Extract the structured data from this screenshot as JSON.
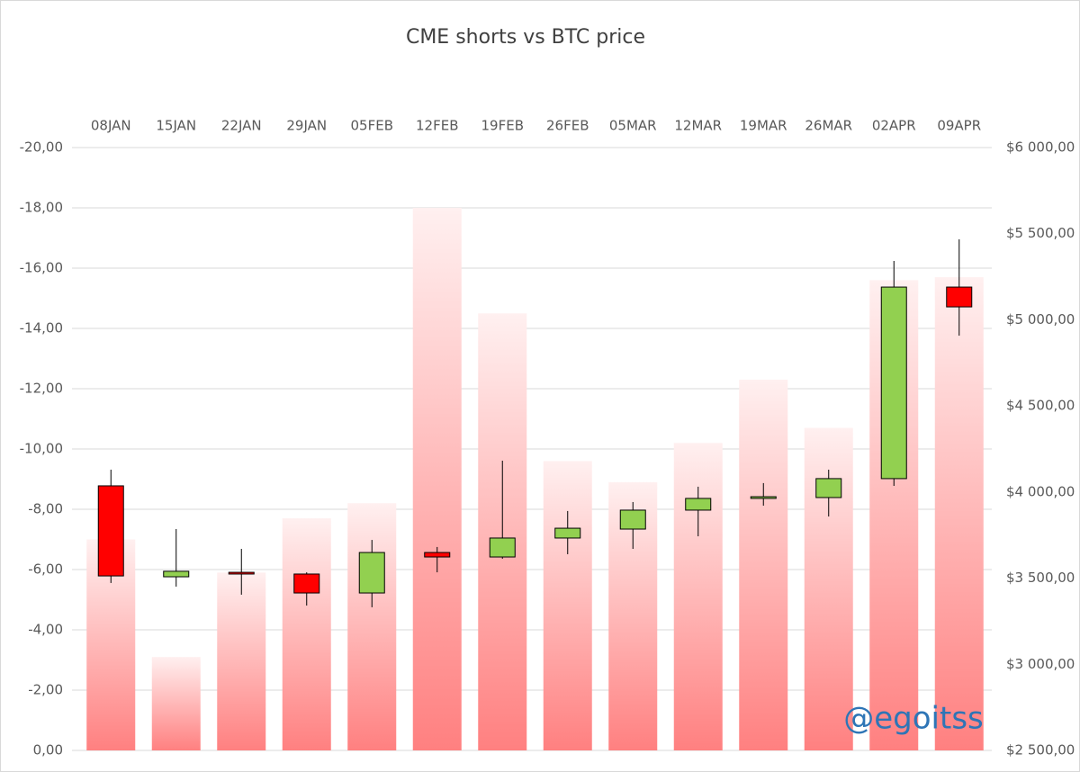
{
  "chart_data": [
    {
      "type": "bar",
      "title": "CME shorts vs BTC price",
      "categories": [
        "08JAN",
        "15JAN",
        "22JAN",
        "29JAN",
        "05FEB",
        "12FEB",
        "19FEB",
        "26FEB",
        "05MAR",
        "12MAR",
        "19MAR",
        "26MAR",
        "02APR",
        "09APR"
      ],
      "values": [
        -7,
        -3.1,
        -5.9,
        -7.7,
        -8.2,
        -18,
        -14.5,
        -9.6,
        -8.9,
        -10.2,
        -12.3,
        -10.7,
        -15.6,
        -15.7
      ],
      "color": "#ff8080",
      "ylim": [
        0,
        -20
      ],
      "yticks": [
        {
          "value": 0,
          "label": "0,00"
        },
        {
          "value": -2,
          "label": "-2,00"
        },
        {
          "value": -4,
          "label": "-4,00"
        },
        {
          "value": -6,
          "label": "-6,00"
        },
        {
          "value": -8,
          "label": "-8,00"
        },
        {
          "value": -10,
          "label": "-10,00"
        },
        {
          "value": -12,
          "label": "-12,00"
        },
        {
          "value": -14,
          "label": "-14,00"
        },
        {
          "value": -16,
          "label": "-16,00"
        },
        {
          "value": -18,
          "label": "-18,00"
        },
        {
          "value": -20,
          "label": "-20,00"
        }
      ],
      "grid": true,
      "annotation": "@egoitss"
    },
    {
      "type": "candlestick",
      "axis": "y2",
      "open": [
        4036,
        3508,
        3534,
        3524,
        3414,
        3649,
        3623,
        3733,
        3785,
        3895,
        3963,
        3968,
        4078,
        5190
      ],
      "high": [
        4130,
        3785,
        3670,
        3534,
        3722,
        3681,
        4182,
        3890,
        3942,
        4031,
        4052,
        4130,
        5342,
        5467
      ],
      "low": [
        3472,
        3451,
        3404,
        3341,
        3331,
        3534,
        3613,
        3639,
        3670,
        3743,
        3921,
        3858,
        4036,
        4908
      ],
      "close": [
        3513,
        3540,
        3524,
        3414,
        3649,
        3623,
        3733,
        3790,
        3895,
        3963,
        3973,
        4078,
        5190,
        5075
      ],
      "up_color": "#92d050",
      "down_color": "#ff0000",
      "y2lim": [
        2500,
        6000
      ],
      "y2ticks": [
        {
          "value": 2500,
          "label": "$2 500,00"
        },
        {
          "value": 3000,
          "label": "$3 000,00"
        },
        {
          "value": 3500,
          "label": "$3 500,00"
        },
        {
          "value": 4000,
          "label": "$4 000,00"
        },
        {
          "value": 4500,
          "label": "$4 500,00"
        },
        {
          "value": 5000,
          "label": "$5 000,00"
        },
        {
          "value": 5500,
          "label": "$5 500,00"
        },
        {
          "value": 6000,
          "label": "$6 000,00"
        }
      ]
    }
  ]
}
